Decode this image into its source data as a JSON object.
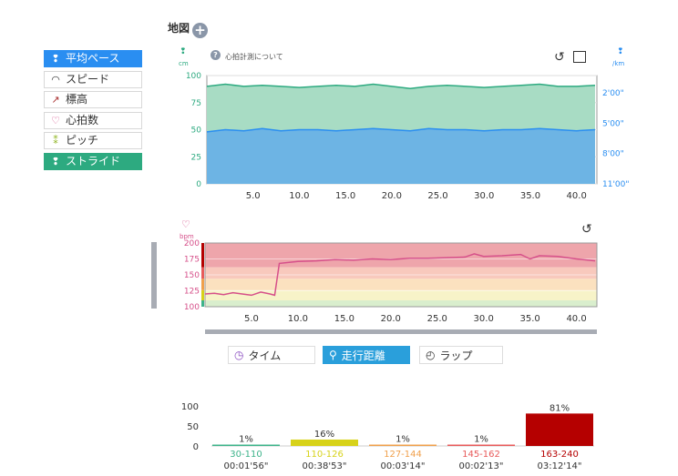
{
  "map": {
    "title": "地図",
    "add_icon": "plus-circle-icon"
  },
  "sidebar": {
    "items": [
      {
        "label": "平均ペース",
        "icon": "footprints-icon",
        "glyph": "❢",
        "state": "active-blue"
      },
      {
        "label": "スピード",
        "icon": "speedometer-icon",
        "glyph": "◠",
        "state": ""
      },
      {
        "label": "標高",
        "icon": "elevation-icon",
        "glyph": "↗",
        "state": ""
      },
      {
        "label": "心拍数",
        "icon": "heart-icon",
        "glyph": "♡",
        "state": ""
      },
      {
        "label": "ピッチ",
        "icon": "pitch-icon",
        "glyph": "⁑",
        "state": ""
      },
      {
        "label": "ストライド",
        "icon": "stride-icon",
        "glyph": "❢",
        "state": "active-green"
      }
    ]
  },
  "top_chart": {
    "info_text": "心拍計測について",
    "left_unit": "cm",
    "right_unit": "/km",
    "colors": {
      "stride": "#2daa80",
      "pace": "#2a8ef1"
    },
    "chart_data": {
      "type": "area",
      "x_ticks": [
        "5.0",
        "10.0",
        "15.0",
        "20.0",
        "25.0",
        "30.0",
        "35.0",
        "40.0"
      ],
      "left_ticks": [
        "100",
        "75",
        "50",
        "25",
        "0"
      ],
      "right_ticks": [
        "2'00\"",
        "5'00\"",
        "8'00\"",
        "11'00\""
      ],
      "xlim": [
        0,
        42.2
      ],
      "ylim": [
        0,
        100
      ],
      "series": [
        {
          "x": [
            0,
            2,
            4,
            6,
            8,
            10,
            12,
            14,
            16,
            18,
            20,
            22,
            24,
            26,
            28,
            30,
            32,
            34,
            36,
            38,
            40,
            42
          ],
          "values": [
            90,
            92,
            90,
            91,
            90,
            89,
            90,
            91,
            90,
            92,
            90,
            88,
            90,
            91,
            90,
            89,
            90,
            91,
            92,
            90,
            90,
            91
          ]
        },
        {
          "x": [
            0,
            2,
            4,
            6,
            8,
            10,
            12,
            14,
            16,
            18,
            20,
            22,
            24,
            26,
            28,
            30,
            32,
            34,
            36,
            38,
            40,
            42
          ],
          "values": [
            48,
            50,
            49,
            51,
            49,
            50,
            50,
            49,
            50,
            51,
            50,
            49,
            51,
            50,
            50,
            49,
            50,
            50,
            51,
            50,
            49,
            50
          ]
        }
      ]
    }
  },
  "hr_chart": {
    "unit": "bpm",
    "chart_data": {
      "type": "line",
      "x_ticks": [
        "5.0",
        "10.0",
        "15.0",
        "20.0",
        "25.0",
        "30.0",
        "35.0",
        "40.0"
      ],
      "y_ticks": [
        "200",
        "175",
        "150",
        "125",
        "100"
      ],
      "xlim": [
        0,
        42.2
      ],
      "ylim": [
        100,
        200
      ],
      "series": [
        {
          "x": [
            0,
            1,
            2,
            3,
            4,
            5,
            6,
            7,
            7.5,
            8,
            10,
            12,
            14,
            16,
            18,
            20,
            22,
            24,
            26,
            28,
            29,
            30,
            32,
            34,
            35,
            36,
            38,
            40,
            42
          ],
          "values": [
            120,
            121,
            119,
            122,
            120,
            118,
            123,
            120,
            118,
            168,
            171,
            172,
            174,
            173,
            175,
            174,
            176,
            176,
            177,
            178,
            183,
            179,
            180,
            182,
            175,
            180,
            179,
            175,
            172
          ]
        }
      ],
      "zones_colors": [
        "#d9eecd",
        "#f7f3c8",
        "#fbe1bf",
        "#f8c9bd",
        "#eea5ab"
      ]
    }
  },
  "tabs": [
    {
      "label": "タイム",
      "icon": "clock-icon",
      "glyph": "◷",
      "active": false
    },
    {
      "label": "走行距離",
      "icon": "distance-icon",
      "glyph": "⚲",
      "active": true
    },
    {
      "label": "ラップ",
      "icon": "lap-icon",
      "glyph": "◴",
      "active": false
    }
  ],
  "histogram": {
    "chart_data": {
      "type": "bar",
      "y_ticks": [
        "100",
        "50",
        "0"
      ],
      "ylim": [
        0,
        100
      ],
      "categories": [
        "30-110",
        "110-126",
        "127-144",
        "145-162",
        "163-240"
      ],
      "values": [
        1,
        16,
        1,
        1,
        81
      ],
      "value_labels": [
        "1%",
        "16%",
        "1%",
        "1%",
        "81%"
      ],
      "times": [
        "00:01'56\"",
        "00:38'53\"",
        "00:03'14\"",
        "00:02'13\"",
        "03:12'14\""
      ],
      "colors": [
        "#3cb38a",
        "#d7d21a",
        "#f0a04b",
        "#e85a5a",
        "#b50000"
      ]
    }
  }
}
